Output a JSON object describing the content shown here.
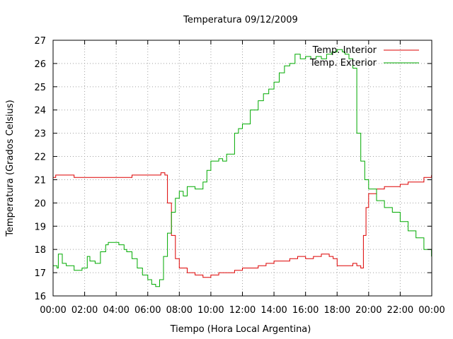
{
  "chart_data": {
    "type": "line",
    "title": "Temperatura 09/12/2009",
    "xlabel": "Tiempo (Hora Local Argentina)",
    "ylabel": "Temperatura (Grados Celsius)",
    "xlim": [
      "00:00",
      "24:00"
    ],
    "ylim": [
      16,
      27
    ],
    "x_ticks": [
      "00:00",
      "02:00",
      "04:00",
      "06:00",
      "08:00",
      "10:00",
      "12:00",
      "14:00",
      "16:00",
      "18:00",
      "20:00",
      "22:00",
      "00:00"
    ],
    "y_ticks": [
      16,
      17,
      18,
      19,
      20,
      21,
      22,
      23,
      24,
      25,
      26,
      27
    ],
    "grid": true,
    "legend_position": "top-right",
    "series": [
      {
        "name": "Temp. Interior",
        "color": "#dd0000",
        "x": [
          "00:00",
          "00:10",
          "01:10",
          "01:20",
          "04:50",
          "05:00",
          "06:50",
          "07:05",
          "07:15",
          "07:30",
          "07:45",
          "08:00",
          "08:30",
          "09:00",
          "09:30",
          "09:45",
          "10:00",
          "10:30",
          "11:00",
          "11:30",
          "12:00",
          "12:30",
          "13:00",
          "13:30",
          "14:00",
          "14:30",
          "15:00",
          "15:30",
          "16:00",
          "16:30",
          "17:00",
          "17:30",
          "17:45",
          "18:00",
          "18:30",
          "19:00",
          "19:15",
          "19:30",
          "19:40",
          "19:50",
          "20:00",
          "20:30",
          "21:00",
          "21:30",
          "22:00",
          "22:30",
          "23:00",
          "23:30",
          "23:59"
        ],
        "y": [
          21.1,
          21.2,
          21.2,
          21.1,
          21.1,
          21.2,
          21.3,
          21.2,
          20.0,
          18.6,
          17.6,
          17.2,
          17.0,
          16.9,
          16.8,
          16.8,
          16.9,
          17.0,
          17.0,
          17.1,
          17.2,
          17.2,
          17.3,
          17.4,
          17.5,
          17.5,
          17.6,
          17.7,
          17.6,
          17.7,
          17.8,
          17.7,
          17.6,
          17.3,
          17.3,
          17.4,
          17.3,
          17.2,
          18.6,
          19.8,
          20.4,
          20.6,
          20.7,
          20.7,
          20.8,
          20.9,
          20.9,
          21.1,
          21.2
        ]
      },
      {
        "name": "Temp. Exterior",
        "color": "#00aa00",
        "x": [
          "00:00",
          "00:15",
          "00:20",
          "00:35",
          "00:50",
          "01:05",
          "01:20",
          "01:35",
          "01:50",
          "02:10",
          "02:20",
          "02:40",
          "03:00",
          "03:20",
          "03:30",
          "03:50",
          "04:10",
          "04:30",
          "04:40",
          "05:00",
          "05:20",
          "05:40",
          "06:00",
          "06:15",
          "06:30",
          "06:45",
          "07:00",
          "07:15",
          "07:30",
          "07:45",
          "08:00",
          "08:15",
          "08:30",
          "08:45",
          "09:00",
          "09:30",
          "09:45",
          "10:00",
          "10:30",
          "10:45",
          "11:00",
          "11:30",
          "11:45",
          "12:00",
          "12:30",
          "13:00",
          "13:20",
          "13:40",
          "14:00",
          "14:20",
          "14:40",
          "15:00",
          "15:20",
          "15:40",
          "16:00",
          "16:20",
          "16:40",
          "17:00",
          "17:20",
          "17:40",
          "18:00",
          "18:20",
          "18:30",
          "18:45",
          "19:00",
          "19:15",
          "19:30",
          "19:45",
          "20:00",
          "20:30",
          "21:00",
          "21:30",
          "22:00",
          "22:30",
          "23:00",
          "23:30",
          "23:59"
        ],
        "y": [
          17.3,
          17.2,
          17.8,
          17.4,
          17.3,
          17.3,
          17.1,
          17.1,
          17.2,
          17.7,
          17.5,
          17.4,
          17.9,
          18.2,
          18.3,
          18.3,
          18.2,
          18.0,
          17.9,
          17.6,
          17.2,
          16.9,
          16.7,
          16.5,
          16.4,
          16.7,
          17.7,
          18.7,
          19.6,
          20.2,
          20.5,
          20.3,
          20.7,
          20.7,
          20.6,
          20.9,
          21.4,
          21.8,
          21.9,
          21.8,
          22.1,
          23.0,
          23.2,
          23.4,
          24.0,
          24.4,
          24.7,
          24.9,
          25.2,
          25.6,
          25.9,
          26.0,
          26.4,
          26.2,
          26.3,
          26.2,
          26.3,
          26.2,
          26.4,
          26.5,
          26.6,
          26.5,
          26.4,
          26.2,
          25.8,
          23.0,
          21.8,
          21.0,
          20.6,
          20.1,
          19.8,
          19.6,
          19.2,
          18.8,
          18.5,
          18.0,
          17.7
        ]
      }
    ]
  }
}
